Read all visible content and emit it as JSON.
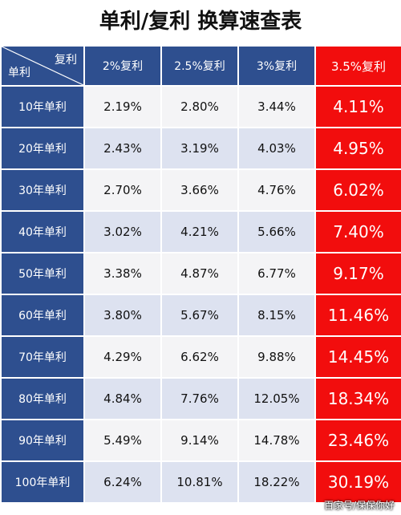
{
  "title": "单利/复利 换算速查表",
  "header": {
    "corner_top": "复利",
    "corner_bottom": "单利",
    "columns": [
      "2%复利",
      "2.5%复利",
      "3%复利",
      "3.5%复利"
    ]
  },
  "rows": [
    {
      "label": "10年单利",
      "values": [
        "2.19%",
        "2.80%",
        "3.44%",
        "4.11%"
      ]
    },
    {
      "label": "20年单利",
      "values": [
        "2.43%",
        "3.19%",
        "4.03%",
        "4.95%"
      ]
    },
    {
      "label": "30年单利",
      "values": [
        "2.70%",
        "3.66%",
        "4.76%",
        "6.02%"
      ]
    },
    {
      "label": "40年单利",
      "values": [
        "3.02%",
        "4.21%",
        "5.66%",
        "7.40%"
      ]
    },
    {
      "label": "50年单利",
      "values": [
        "3.38%",
        "4.87%",
        "6.77%",
        "9.17%"
      ]
    },
    {
      "label": "60年单利",
      "values": [
        "3.80%",
        "5.67%",
        "8.15%",
        "11.46%"
      ]
    },
    {
      "label": "70年单利",
      "values": [
        "4.29%",
        "6.62%",
        "9.88%",
        "14.45%"
      ]
    },
    {
      "label": "80年单利",
      "values": [
        "4.84%",
        "7.76%",
        "12.05%",
        "18.34%"
      ]
    },
    {
      "label": "90年单利",
      "values": [
        "5.49%",
        "9.14%",
        "14.78%",
        "23.46%"
      ]
    },
    {
      "label": "100年单利",
      "values": [
        "6.24%",
        "10.81%",
        "18.22%",
        "30.19%"
      ]
    }
  ],
  "watermark": "百家号/保保你好",
  "colors": {
    "header_blue": "#2e4f8f",
    "highlight_red": "#f20d0d"
  }
}
